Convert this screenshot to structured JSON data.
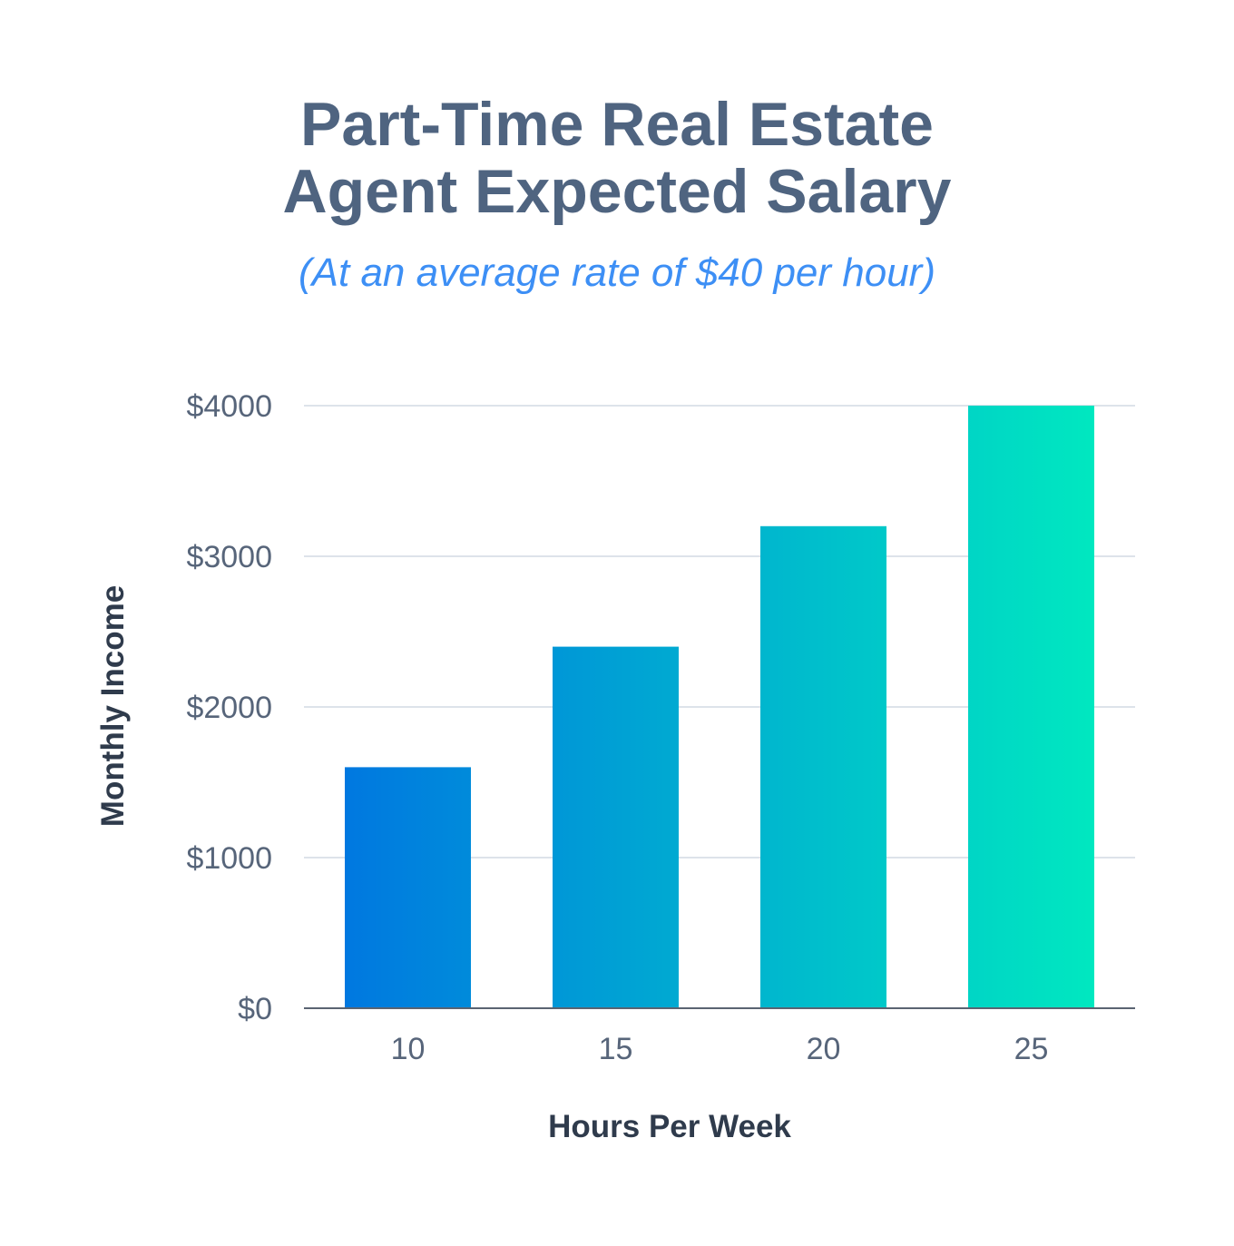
{
  "title_lines": [
    "Part-Time Real Estate",
    "Agent Expected Salary"
  ],
  "subtitle": "(At an average rate of $40 per hour)",
  "chart_data": {
    "type": "bar",
    "title": "Part-Time Real Estate Agent Expected Salary",
    "subtitle": "(At an average rate of $40 per hour)",
    "categories": [
      "10",
      "15",
      "20",
      "25"
    ],
    "values": [
      1600,
      2400,
      3200,
      4000
    ],
    "xlabel": "Hours Per Week",
    "ylabel": "Monthly Income",
    "ylim": [
      0,
      4000
    ],
    "yticks": [
      0,
      1000,
      2000,
      3000,
      4000
    ],
    "ytick_labels": [
      "$0",
      "$1000",
      "$2000",
      "$3000",
      "$4000"
    ],
    "grid": true,
    "legend": "none",
    "colors": {
      "bar_start": "#0078e0",
      "bar_end": "#00e8c0",
      "grid": "#dde3ea",
      "axis": "#5a6472"
    }
  }
}
